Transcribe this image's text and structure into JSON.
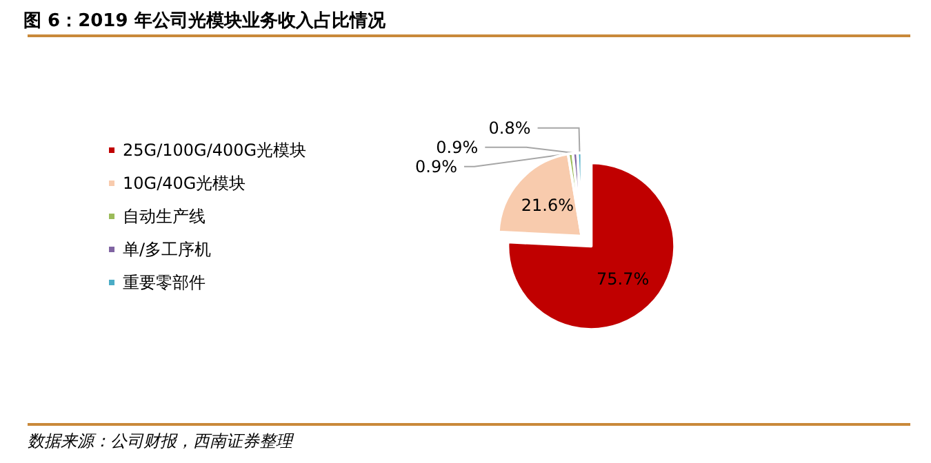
{
  "chart_data": {
    "type": "pie",
    "title": "图 6：2019 年公司光模块业务收入占比情况",
    "categories": [
      "25G/100G/400G光模块",
      "10G/40G光模块",
      "自动生产线",
      "单/多工序机",
      "重要零部件"
    ],
    "values": [
      75.7,
      21.6,
      0.9,
      0.9,
      0.8
    ],
    "value_labels": [
      "75.7%",
      "21.6%",
      "0.9%",
      "0.9%",
      "0.8%"
    ],
    "colors": [
      "#c00000",
      "#f8cbad",
      "#9bbb59",
      "#8064a2",
      "#4bacc6"
    ],
    "legend": "left",
    "annotations": [
      "数据来源：公司财报，西南证券整理"
    ]
  }
}
